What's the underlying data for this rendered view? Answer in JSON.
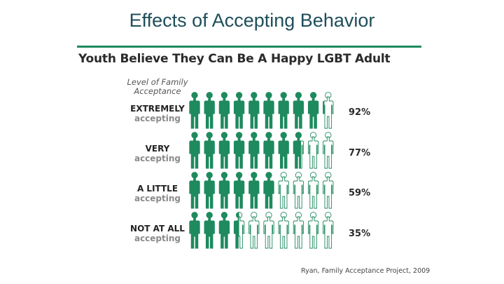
{
  "slide_title": "Effects of Accepting Behavior",
  "chart_data": {
    "type": "pictograph",
    "title": "Youth Believe They Can Be A Happy LGBT Adult",
    "level_label": "Level of Family Acceptance",
    "figures_per_row": 10,
    "categories": [
      {
        "label_line1": "EXTREMELY",
        "label_line2": "accepting",
        "value": 92,
        "value_label": "92%"
      },
      {
        "label_line1": "VERY",
        "label_line2": "accepting",
        "value": 77,
        "value_label": "77%"
      },
      {
        "label_line1": "A LITTLE",
        "label_line2": "accepting",
        "value": 59,
        "value_label": "59%"
      },
      {
        "label_line1": "NOT AT ALL",
        "label_line2": "accepting",
        "value": 35,
        "value_label": "35%"
      }
    ],
    "colors": {
      "filled": "#1e8a5e",
      "empty_stroke": "#1e8a5e",
      "empty_fill": "#ffffff"
    },
    "source": "Ryan, Family Acceptance Project, 2009"
  }
}
